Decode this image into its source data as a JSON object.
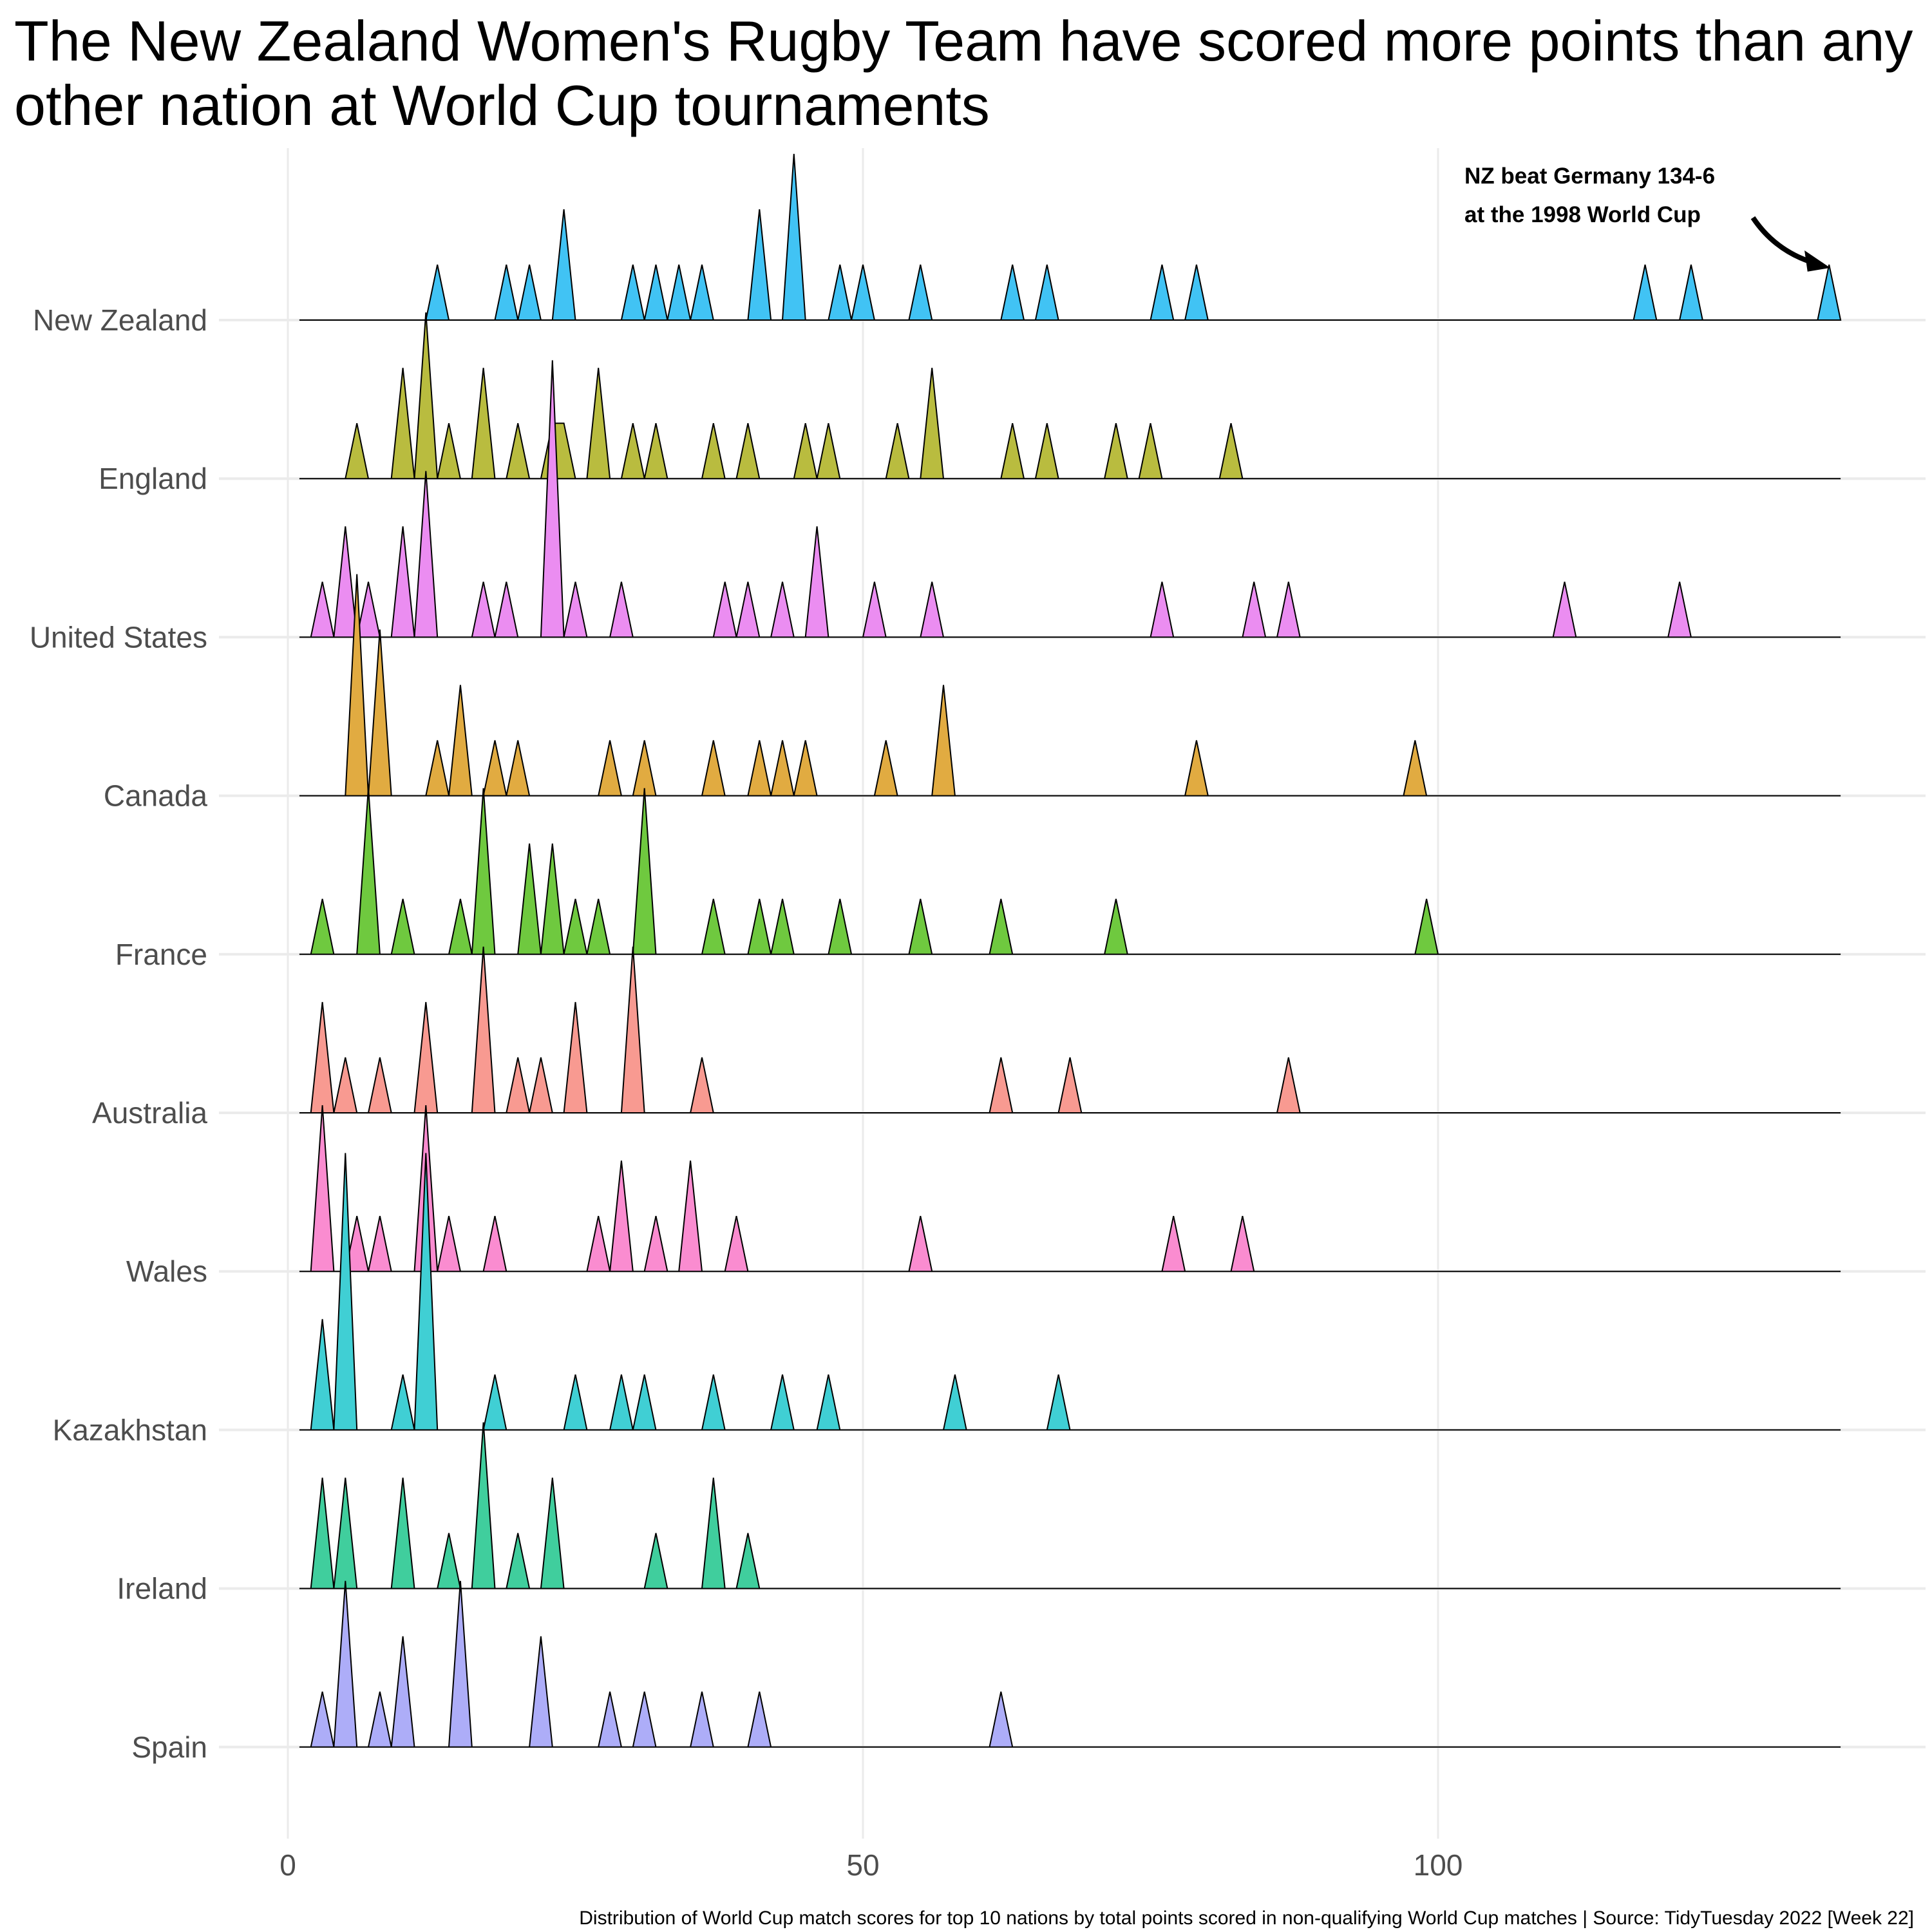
{
  "chart_data": {
    "type": "ridgeline",
    "title": "The New Zealand Women's Rugby Team have scored more points than any other nation at World Cup tournaments",
    "caption": "Distribution of World Cup match scores for top 10 nations by total points scored in non-qualifying World Cup matches | Source: TidyTuesday 2022 [Week 22]",
    "xlabel": "",
    "ylabel": "",
    "xlim": [
      -2,
      142
    ],
    "x_ticks": [
      "0",
      "50",
      "100"
    ],
    "grid": true,
    "annotation": {
      "lines": [
        "NZ beat Germany 134-6",
        "at the 1998 World Cup"
      ],
      "points_to": 134
    },
    "series": [
      {
        "name": "New Zealand",
        "color": "#41C3F4",
        "peaks": [
          [
            13,
            1
          ],
          [
            19,
            1
          ],
          [
            21,
            1
          ],
          [
            24,
            2
          ],
          [
            30,
            1
          ],
          [
            32,
            1
          ],
          [
            34,
            1
          ],
          [
            36,
            1
          ],
          [
            41,
            2
          ],
          [
            44,
            3
          ],
          [
            48,
            1
          ],
          [
            50,
            1
          ],
          [
            55,
            1
          ],
          [
            63,
            1
          ],
          [
            66,
            1
          ],
          [
            76,
            1
          ],
          [
            79,
            1
          ],
          [
            118,
            1
          ],
          [
            122,
            1
          ],
          [
            134,
            1
          ]
        ]
      },
      {
        "name": "England",
        "color": "#B9BC3F",
        "peaks": [
          [
            6,
            1
          ],
          [
            10,
            2
          ],
          [
            12,
            3
          ],
          [
            14,
            1
          ],
          [
            17,
            2
          ],
          [
            20,
            1
          ],
          [
            23,
            1
          ],
          [
            24,
            1
          ],
          [
            27,
            2
          ],
          [
            30,
            1
          ],
          [
            32,
            1
          ],
          [
            37,
            1
          ],
          [
            40,
            1
          ],
          [
            45,
            1
          ],
          [
            47,
            1
          ],
          [
            53,
            1
          ],
          [
            56,
            2
          ],
          [
            63,
            1
          ],
          [
            66,
            1
          ],
          [
            72,
            1
          ],
          [
            75,
            1
          ],
          [
            82,
            1
          ]
        ]
      },
      {
        "name": "United States",
        "color": "#EB8DF1",
        "peaks": [
          [
            3,
            1
          ],
          [
            5,
            2
          ],
          [
            7,
            1
          ],
          [
            10,
            2
          ],
          [
            12,
            3
          ],
          [
            17,
            1
          ],
          [
            19,
            1
          ],
          [
            23,
            5
          ],
          [
            25,
            1
          ],
          [
            29,
            1
          ],
          [
            38,
            1
          ],
          [
            40,
            1
          ],
          [
            43,
            1
          ],
          [
            46,
            2
          ],
          [
            51,
            1
          ],
          [
            56,
            1
          ],
          [
            76,
            1
          ],
          [
            84,
            1
          ],
          [
            87,
            1
          ],
          [
            111,
            1
          ],
          [
            121,
            1
          ]
        ]
      },
      {
        "name": "Canada",
        "color": "#E1AB41",
        "peaks": [
          [
            6,
            4
          ],
          [
            8,
            3
          ],
          [
            13,
            1
          ],
          [
            15,
            2
          ],
          [
            18,
            1
          ],
          [
            20,
            1
          ],
          [
            28,
            1
          ],
          [
            31,
            1
          ],
          [
            37,
            1
          ],
          [
            41,
            1
          ],
          [
            43,
            1
          ],
          [
            45,
            1
          ],
          [
            52,
            1
          ],
          [
            57,
            2
          ],
          [
            79,
            1
          ],
          [
            98,
            1
          ]
        ]
      },
      {
        "name": "France",
        "color": "#6FC93F",
        "peaks": [
          [
            3,
            1
          ],
          [
            7,
            3
          ],
          [
            10,
            1
          ],
          [
            15,
            1
          ],
          [
            17,
            3
          ],
          [
            21,
            2
          ],
          [
            23,
            2
          ],
          [
            25,
            1
          ],
          [
            27,
            1
          ],
          [
            31,
            3
          ],
          [
            37,
            1
          ],
          [
            41,
            1
          ],
          [
            43,
            1
          ],
          [
            48,
            1
          ],
          [
            55,
            1
          ],
          [
            62,
            1
          ],
          [
            72,
            1
          ],
          [
            99,
            1
          ]
        ]
      },
      {
        "name": "Australia",
        "color": "#F89A91",
        "peaks": [
          [
            3,
            2
          ],
          [
            5,
            1
          ],
          [
            8,
            1
          ],
          [
            12,
            2
          ],
          [
            17,
            3
          ],
          [
            20,
            1
          ],
          [
            22,
            1
          ],
          [
            25,
            2
          ],
          [
            30,
            3
          ],
          [
            36,
            1
          ],
          [
            62,
            1
          ],
          [
            68,
            1
          ],
          [
            87,
            1
          ]
        ]
      },
      {
        "name": "Wales",
        "color": "#FA8CD0",
        "peaks": [
          [
            3,
            3
          ],
          [
            6,
            1
          ],
          [
            8,
            1
          ],
          [
            12,
            3
          ],
          [
            14,
            1
          ],
          [
            18,
            1
          ],
          [
            27,
            1
          ],
          [
            29,
            2
          ],
          [
            32,
            1
          ],
          [
            35,
            2
          ],
          [
            39,
            1
          ],
          [
            55,
            1
          ],
          [
            77,
            1
          ],
          [
            83,
            1
          ]
        ]
      },
      {
        "name": "Kazakhstan",
        "color": "#40CFD4",
        "peaks": [
          [
            3,
            2
          ],
          [
            5,
            5
          ],
          [
            10,
            1
          ],
          [
            12,
            5
          ],
          [
            18,
            1
          ],
          [
            25,
            1
          ],
          [
            29,
            1
          ],
          [
            31,
            1
          ],
          [
            37,
            1
          ],
          [
            43,
            1
          ],
          [
            47,
            1
          ],
          [
            58,
            1
          ],
          [
            67,
            1
          ]
        ]
      },
      {
        "name": "Ireland",
        "color": "#40CE9D",
        "peaks": [
          [
            3,
            2
          ],
          [
            5,
            2
          ],
          [
            10,
            2
          ],
          [
            14,
            1
          ],
          [
            17,
            3
          ],
          [
            20,
            1
          ],
          [
            23,
            2
          ],
          [
            32,
            1
          ],
          [
            37,
            2
          ],
          [
            40,
            1
          ]
        ]
      },
      {
        "name": "Spain",
        "color": "#ADADF8",
        "peaks": [
          [
            3,
            1
          ],
          [
            5,
            3
          ],
          [
            8,
            1
          ],
          [
            10,
            2
          ],
          [
            15,
            3
          ],
          [
            22,
            2
          ],
          [
            28,
            1
          ],
          [
            31,
            1
          ],
          [
            36,
            1
          ],
          [
            41,
            1
          ],
          [
            62,
            1
          ]
        ]
      }
    ]
  }
}
